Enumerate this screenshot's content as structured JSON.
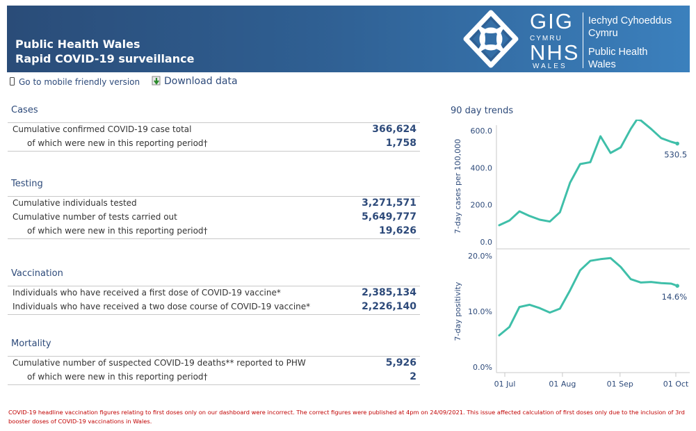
{
  "header": {
    "title_line1": "Public Health Wales",
    "title_line2": "Rapid COVID-19 surveillance",
    "logo": {
      "gig": "GIG",
      "cymru": "CYMRU",
      "nhs": "NHS",
      "wales": "WALES",
      "org_line1": "Iechyd Cyhoeddus",
      "org_line2": "Cymru",
      "org_line3": "Public Health",
      "org_line4": "Wales"
    }
  },
  "toolbar": {
    "mobile_label": "Go to mobile friendly version",
    "download_label": "Download data",
    "mobile_icon": "phone-icon",
    "download_icon": "download-icon"
  },
  "sections": {
    "cases": {
      "title": "Cases",
      "rows": [
        {
          "label": "Cumulative confirmed COVID-19 case total",
          "value": "366,624"
        },
        {
          "label": "of which were new in this reporting period†",
          "value": "1,758"
        }
      ]
    },
    "testing": {
      "title": "Testing",
      "rows": [
        {
          "label": "Cumulative individuals tested",
          "value": "3,271,571"
        },
        {
          "label": "Cumulative number of tests carried out",
          "value": "5,649,777"
        },
        {
          "label": "of which were new in this reporting period†",
          "value": "19,626"
        }
      ]
    },
    "vaccination": {
      "title": "Vaccination",
      "rows": [
        {
          "label": "Individuals who have received a first dose of COVID-19 vaccine*",
          "value": "2,385,134"
        },
        {
          "label": "Individuals who have received a two dose course of COVID-19 vaccine*",
          "value": "2,226,140"
        }
      ]
    },
    "mortality": {
      "title": "Mortality",
      "rows": [
        {
          "label": "Cumulative number of suspected COVID-19 deaths** reported to PHW",
          "value": "5,926"
        },
        {
          "label": "of which were new in this reporting period†",
          "value": "2"
        }
      ]
    }
  },
  "trends_title": "90 day trends",
  "chart_data": [
    {
      "type": "line",
      "title": "",
      "ylabel": "7-day cases per 100,000",
      "ylim": [
        0,
        660
      ],
      "yticks": [
        0,
        200,
        400,
        600
      ],
      "ytick_labels": [
        "0.0",
        "200.0",
        "400.0",
        "600.0"
      ],
      "x": [
        0,
        5,
        10,
        15,
        20,
        25,
        30,
        35,
        40,
        45,
        50,
        55,
        60,
        65,
        68,
        70,
        75,
        80,
        85,
        88
      ],
      "values": [
        90,
        115,
        165,
        140,
        120,
        110,
        160,
        320,
        420,
        430,
        570,
        480,
        510,
        610,
        660,
        655,
        610,
        560,
        540,
        530.5
      ],
      "last_label": "530.5",
      "color": "#3fbfa9"
    },
    {
      "type": "line",
      "title": "",
      "ylabel": "7-day positivity",
      "ylim": [
        0,
        20
      ],
      "yticks": [
        0,
        10,
        20
      ],
      "ytick_labels": [
        "0.0%",
        "10.0%",
        "20.0%"
      ],
      "xtick_labels": [
        "01 Jul",
        "01 Aug",
        "01 Sep",
        "01 Oct"
      ],
      "x": [
        0,
        5,
        10,
        15,
        20,
        25,
        30,
        35,
        40,
        45,
        50,
        55,
        60,
        65,
        70,
        75,
        80,
        85,
        88
      ],
      "values": [
        5.7,
        7.2,
        10.8,
        11.2,
        10.6,
        9.8,
        10.5,
        13.8,
        17.4,
        19.1,
        19.4,
        19.6,
        18.0,
        15.8,
        15.2,
        15.3,
        15.1,
        15.0,
        14.6
      ],
      "last_label": "14.6%",
      "color": "#3fbfa9"
    }
  ],
  "note": "COVID-19 headline vaccination figures relating to first doses only on our dashboard were incorrect. The correct figures were published at 4pm on 24/09/2021.  This issue affected calculation of first doses only due to the inclusion of 3rd booster doses of COVID-19 vaccinations in Wales."
}
